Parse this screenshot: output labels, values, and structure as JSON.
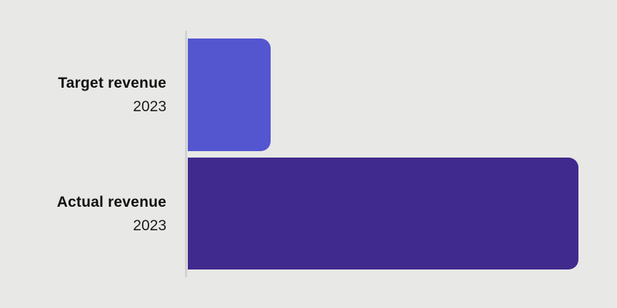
{
  "chart_data": {
    "type": "bar",
    "orientation": "horizontal",
    "title": "",
    "xlabel": "",
    "ylabel": "",
    "categories": [
      "Target revenue 2023",
      "Actual revenue 2023"
    ],
    "values": [
      21.2,
      100
    ],
    "xlim": [
      0,
      100
    ],
    "value_scale": "relative length, no numeric axis or data labels shown",
    "grid": false,
    "legend": false,
    "bar_colors": [
      "#5456d0",
      "#412a8d"
    ]
  },
  "rows": [
    {
      "name": "Target revenue",
      "year": "2023",
      "value": 21.2,
      "color": "#5456d0"
    },
    {
      "name": "Actual revenue",
      "year": "2023",
      "value": 100,
      "color": "#412a8d"
    }
  ],
  "colors": {
    "background": "#e8e8e7",
    "axis_line": "#d2d2d2",
    "label_text": "#111111"
  }
}
